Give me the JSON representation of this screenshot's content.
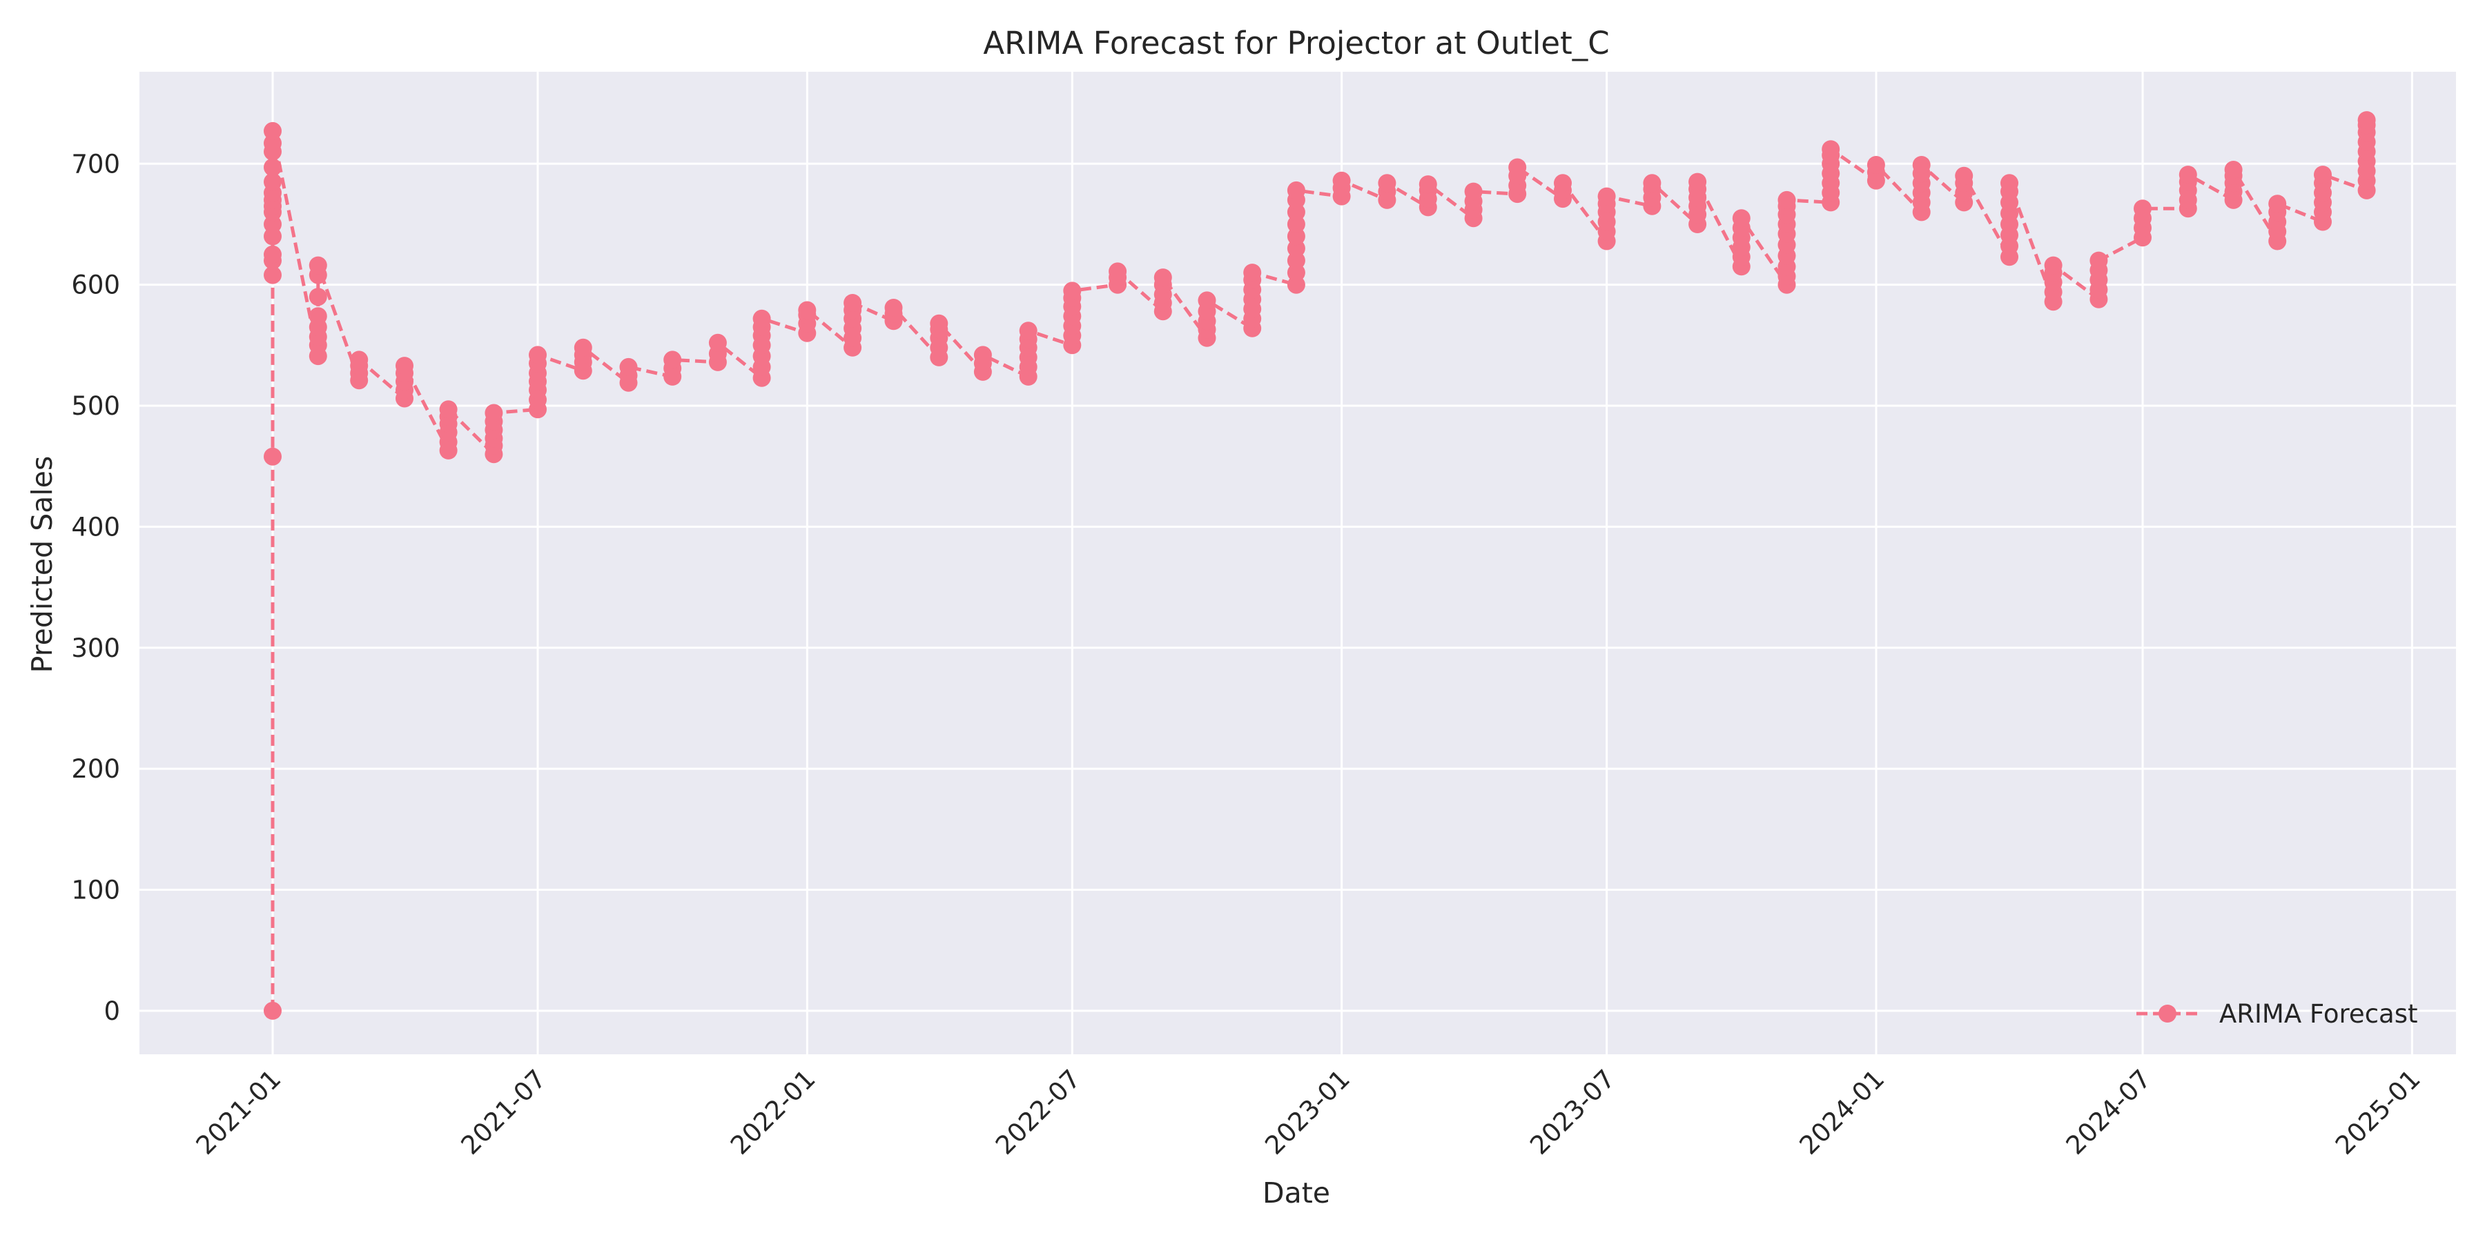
{
  "chart_data": {
    "type": "line",
    "title": "ARIMA Forecast for Projector at Outlet_C",
    "xlabel": "Date",
    "ylabel": "Predicted Sales",
    "ylim": [
      -36,
      776
    ],
    "xlim": [
      "2020-10-02",
      "2025-01-31"
    ],
    "grid": true,
    "legend_position": "lower-right",
    "colors": {
      "series": "#f47389",
      "plot_bg": "#eaeaf2",
      "grid": "#ffffff",
      "text": "#262626"
    },
    "x_ticks": [
      "2021-01",
      "2021-07",
      "2022-01",
      "2022-07",
      "2023-01",
      "2023-07",
      "2024-01",
      "2024-07",
      "2025-01"
    ],
    "y_ticks": [
      0,
      100,
      200,
      300,
      400,
      500,
      600,
      700
    ],
    "series": [
      {
        "name": "ARIMA Forecast",
        "marker": "circle",
        "linestyle": "dashed",
        "clusters": [
          {
            "date": "2021-01-01",
            "values": [
              0,
              458,
              608,
              620,
              625,
              640,
              650,
              660,
              665,
              670,
              676,
              685,
              697,
              710,
              717,
              727
            ]
          },
          {
            "date": "2021-02-01",
            "values": [
              541,
              550,
              557,
              565,
              574,
              590,
              608,
              616
            ]
          },
          {
            "date": "2021-03-01",
            "values": [
              521,
              527,
              533,
              538
            ]
          },
          {
            "date": "2021-04-01",
            "values": [
              506,
              513,
              520,
              527,
              533
            ]
          },
          {
            "date": "2021-05-01",
            "values": [
              463,
              470,
              478,
              485,
              491,
              497
            ]
          },
          {
            "date": "2021-06-01",
            "values": [
              460,
              467,
              473,
              480,
              487,
              494
            ]
          },
          {
            "date": "2021-07-01",
            "values": [
              497,
              505,
              513,
              520,
              527,
              535,
              542
            ]
          },
          {
            "date": "2021-08-01",
            "values": [
              529,
              536,
              542,
              548
            ]
          },
          {
            "date": "2021-09-01",
            "values": [
              519,
              525,
              532
            ]
          },
          {
            "date": "2021-10-01",
            "values": [
              524,
              531,
              538
            ]
          },
          {
            "date": "2021-11-01",
            "values": [
              536,
              543,
              552
            ]
          },
          {
            "date": "2021-12-01",
            "values": [
              523,
              532,
              541,
              550,
              558,
              565,
              572
            ]
          },
          {
            "date": "2022-01-01",
            "values": [
              560,
              568,
              575,
              579
            ]
          },
          {
            "date": "2022-02-01",
            "values": [
              548,
              556,
              564,
              572,
              579,
              585
            ]
          },
          {
            "date": "2022-03-01",
            "values": [
              570,
              576,
              581
            ]
          },
          {
            "date": "2022-04-01",
            "values": [
              540,
              548,
              556,
              563,
              568
            ]
          },
          {
            "date": "2022-05-01",
            "values": [
              528,
              535,
              542
            ]
          },
          {
            "date": "2022-06-01",
            "values": [
              524,
              532,
              540,
              548,
              555,
              562
            ]
          },
          {
            "date": "2022-07-01",
            "values": [
              550,
              558,
              566,
              574,
              582,
              589,
              595
            ]
          },
          {
            "date": "2022-08-01",
            "values": [
              600,
              606,
              611
            ]
          },
          {
            "date": "2022-09-01",
            "values": [
              578,
              585,
              592,
              600,
              606
            ]
          },
          {
            "date": "2022-10-01",
            "values": [
              556,
              563,
              570,
              578,
              587
            ]
          },
          {
            "date": "2022-11-01",
            "values": [
              564,
              572,
              580,
              588,
              596,
              604,
              610
            ]
          },
          {
            "date": "2022-12-01",
            "values": [
              600,
              610,
              620,
              630,
              640,
              650,
              660,
              670,
              678
            ]
          },
          {
            "date": "2023-01-01",
            "values": [
              673,
              680,
              686
            ]
          },
          {
            "date": "2023-02-01",
            "values": [
              670,
              677,
              684
            ]
          },
          {
            "date": "2023-03-01",
            "values": [
              664,
              671,
              678,
              683
            ]
          },
          {
            "date": "2023-04-01",
            "values": [
              655,
              662,
              669,
              677
            ]
          },
          {
            "date": "2023-05-01",
            "values": [
              675,
              682,
              690,
              697
            ]
          },
          {
            "date": "2023-06-01",
            "values": [
              671,
              678,
              684
            ]
          },
          {
            "date": "2023-07-01",
            "values": [
              636,
              644,
              652,
              660,
              667,
              673
            ]
          },
          {
            "date": "2023-08-01",
            "values": [
              665,
              672,
              679,
              684
            ]
          },
          {
            "date": "2023-09-01",
            "values": [
              650,
              658,
              665,
              672,
              679,
              685
            ]
          },
          {
            "date": "2023-10-01",
            "values": [
              615,
              623,
              631,
              639,
              647,
              655
            ]
          },
          {
            "date": "2023-11-01",
            "values": [
              600,
              607,
              615,
              624,
              633,
              642,
              650,
              658,
              665,
              670
            ]
          },
          {
            "date": "2023-12-01",
            "values": [
              668,
              676,
              684,
              692,
              700,
              707,
              712
            ]
          },
          {
            "date": "2024-01-01",
            "values": [
              686,
              693,
              699
            ]
          },
          {
            "date": "2024-02-01",
            "values": [
              660,
              668,
              676,
              684,
              692,
              699
            ]
          },
          {
            "date": "2024-03-01",
            "values": [
              668,
              676,
              684,
              690
            ]
          },
          {
            "date": "2024-04-01",
            "values": [
              623,
              632,
              641,
              650,
              659,
              668,
              677,
              684
            ]
          },
          {
            "date": "2024-05-01",
            "values": [
              586,
              594,
              602,
              610,
              616
            ]
          },
          {
            "date": "2024-06-01",
            "values": [
              588,
              596,
              604,
              612,
              620
            ]
          },
          {
            "date": "2024-07-01",
            "values": [
              639,
              647,
              655,
              663
            ]
          },
          {
            "date": "2024-08-01",
            "values": [
              663,
              670,
              678,
              685,
              691
            ]
          },
          {
            "date": "2024-09-01",
            "values": [
              670,
              677,
              684,
              690,
              695
            ]
          },
          {
            "date": "2024-10-01",
            "values": [
              636,
              644,
              652,
              660,
              667
            ]
          },
          {
            "date": "2024-11-01",
            "values": [
              652,
              660,
              668,
              676,
              684,
              691
            ]
          },
          {
            "date": "2024-12-01",
            "values": [
              678,
              686,
              694,
              702,
              710,
              718,
              726,
              732,
              736
            ]
          }
        ]
      }
    ]
  }
}
